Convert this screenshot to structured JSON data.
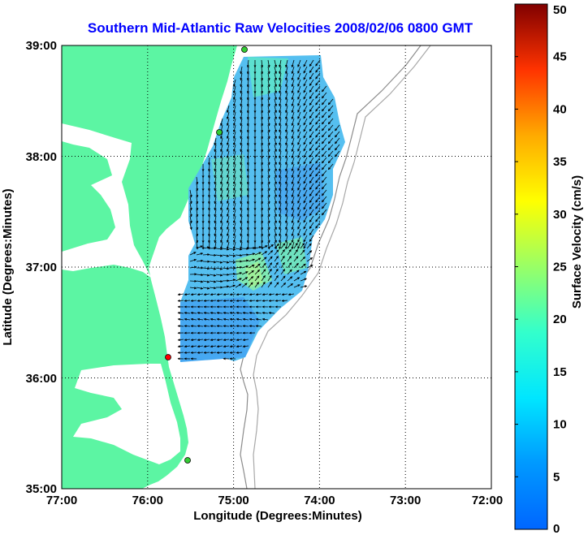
{
  "chart_data": {
    "type": "heatmap",
    "title": "Southern Mid-Atlantic Raw Velocities 2008/02/06 0800 GMT",
    "xlabel": "Longitude (Degrees:Minutes)",
    "ylabel": "Latitude (Degrees:Minutes)",
    "xlim": [
      -77,
      -72
    ],
    "ylim": [
      35,
      39
    ],
    "x_ticks": [
      {
        "value": -77,
        "label": "77:00"
      },
      {
        "value": -76,
        "label": "76:00"
      },
      {
        "value": -75,
        "label": "75:00"
      },
      {
        "value": -74,
        "label": "74:00"
      },
      {
        "value": -73,
        "label": "73:00"
      },
      {
        "value": -72,
        "label": "72:00"
      }
    ],
    "y_ticks": [
      {
        "value": 35,
        "label": "35:00"
      },
      {
        "value": 36,
        "label": "36:00"
      },
      {
        "value": 37,
        "label": "37:00"
      },
      {
        "value": 38,
        "label": "38:00"
      },
      {
        "value": 39,
        "label": "39:00"
      }
    ],
    "grid": true,
    "colorbar": {
      "label": "Surface Velocity (cm/s)",
      "range": [
        0,
        50
      ],
      "ticks": [
        0,
        5,
        10,
        15,
        20,
        25,
        30,
        35,
        40,
        45,
        50
      ],
      "colormap": "jet",
      "placement": "right"
    },
    "land_color": "#5cf5a3",
    "stations": [
      {
        "lon": -74.88,
        "lat": 38.99,
        "color": "#33cc33"
      },
      {
        "lon": -75.15,
        "lat": 38.2,
        "color": "#33cc33"
      },
      {
        "lon": -75.75,
        "lat": 36.18,
        "color": "#ff0000"
      },
      {
        "lon": -75.52,
        "lat": 35.26,
        "color": "#33cc33"
      }
    ]
  }
}
